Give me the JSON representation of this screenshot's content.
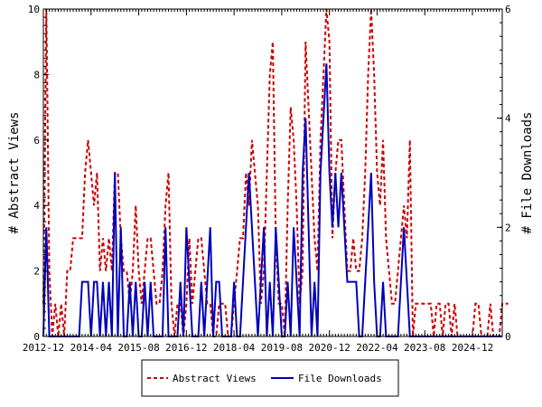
{
  "chart_data": {
    "type": "line",
    "title": "",
    "ylabel": "# Abstract Views",
    "y2label": "# File Downloads",
    "ylim": [
      0,
      10
    ],
    "y2lim": [
      0,
      6
    ],
    "yticks": [
      0,
      2,
      4,
      6,
      8,
      10
    ],
    "y2ticks": [
      0,
      2,
      4,
      6
    ],
    "xlim": [
      0,
      154
    ],
    "xticks": [
      {
        "label": "2012-12",
        "x": 0
      },
      {
        "label": "2014-04",
        "x": 16
      },
      {
        "label": "2015-08",
        "x": 32
      },
      {
        "label": "2016-12",
        "x": 48
      },
      {
        "label": "2018-04",
        "x": 64
      },
      {
        "label": "2019-08",
        "x": 80
      },
      {
        "label": "2020-12",
        "x": 96
      },
      {
        "label": "2022-04",
        "x": 112
      },
      {
        "label": "2023-08",
        "x": 128
      },
      {
        "label": "2024-12",
        "x": 144
      }
    ],
    "grid": false,
    "legend_position": "bottom",
    "series": [
      {
        "name": "Abstract Views",
        "axis": "left",
        "color": "#cc0000",
        "dash": true,
        "values": [
          1,
          10,
          2,
          0,
          1,
          0,
          1,
          0,
          2,
          2,
          3,
          3,
          3,
          3,
          5,
          6,
          5,
          4,
          5,
          2,
          3,
          2,
          3,
          2,
          5,
          5,
          3,
          2,
          2,
          1,
          2,
          4,
          2,
          1,
          2,
          3,
          3,
          2,
          1,
          1,
          2,
          4,
          5,
          1,
          0,
          1,
          1,
          0,
          1,
          3,
          1,
          2,
          3,
          3,
          2,
          1,
          1,
          0,
          0,
          1,
          1,
          1,
          0,
          0,
          1,
          2,
          3,
          3,
          5,
          4,
          6,
          5,
          4,
          1,
          2,
          5,
          8,
          9,
          3,
          1,
          1,
          0,
          4,
          7,
          6,
          4,
          1,
          2,
          9,
          7,
          5,
          3,
          2,
          6,
          8,
          10,
          9,
          3,
          5,
          6,
          6,
          4,
          2,
          2,
          3,
          2,
          2,
          3,
          5,
          8,
          10,
          8,
          5,
          4,
          6,
          3,
          2,
          1,
          1,
          2,
          3,
          4,
          3,
          6,
          0,
          1,
          1,
          1,
          1,
          1,
          1,
          0,
          1,
          1,
          0,
          1,
          1,
          0,
          1,
          0,
          0,
          0,
          0,
          0,
          0,
          1,
          1,
          0,
          0,
          0,
          1,
          0,
          0,
          0,
          1,
          1,
          1
        ]
      },
      {
        "name": "File Downloads",
        "axis": "right",
        "color": "#0000bb",
        "dash": false,
        "values": [
          0,
          2,
          0,
          0,
          0,
          0,
          0,
          0,
          0,
          0,
          0,
          0,
          0,
          1,
          1,
          1,
          0,
          1,
          1,
          0,
          1,
          0,
          1,
          0,
          3,
          0,
          2,
          0,
          0,
          1,
          0,
          1,
          0,
          0,
          1,
          0,
          1,
          0,
          0,
          0,
          0,
          2,
          0,
          0,
          0,
          0,
          1,
          0,
          2,
          1,
          0,
          0,
          0,
          1,
          0,
          1,
          2,
          0,
          1,
          1,
          0,
          0,
          0,
          0,
          1,
          0,
          0,
          1,
          2,
          3,
          2,
          1,
          0,
          1,
          2,
          0,
          1,
          0,
          2,
          1,
          0,
          0,
          1,
          0,
          2,
          1,
          0,
          3,
          4,
          2,
          0,
          1,
          0,
          3,
          4,
          5,
          3,
          2,
          3,
          2,
          3,
          2,
          1,
          1,
          1,
          1,
          0,
          0,
          1,
          2,
          3,
          1,
          0,
          0,
          1,
          0,
          0,
          0,
          0,
          0,
          1,
          2,
          1,
          0,
          0,
          0,
          0,
          0,
          0,
          0,
          0,
          0,
          0,
          0,
          0,
          0,
          0,
          0,
          0,
          0,
          0,
          0,
          0,
          0,
          0,
          0,
          0,
          0,
          0,
          0,
          0,
          0,
          0,
          0,
          0
        ]
      }
    ]
  }
}
